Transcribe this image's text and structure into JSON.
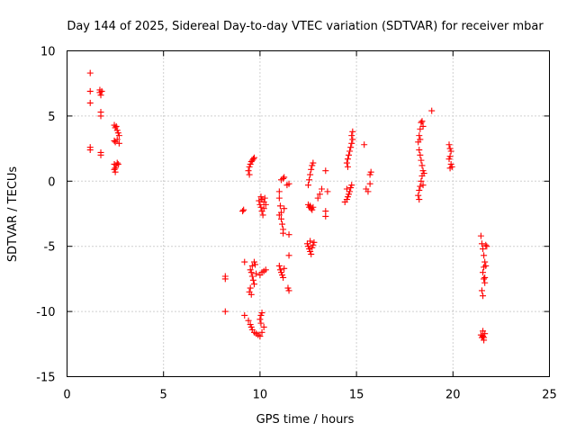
{
  "chart_data": {
    "type": "scatter",
    "title": "Day 144 of 2025, Sidereal Day-to-day VTEC variation (SDTVAR) for receiver mbar",
    "xlabel": "GPS time / hours",
    "ylabel": "SDTVAR / TECUs",
    "xlim": [
      0,
      25
    ],
    "ylim": [
      -15,
      10
    ],
    "xticks": [
      0,
      5,
      10,
      15,
      20,
      25
    ],
    "yticks": [
      -15,
      -10,
      -5,
      0,
      5,
      10
    ],
    "grid": true,
    "marker": "+",
    "marker_color": "#ff0000",
    "series": [
      {
        "name": "SDTVAR",
        "points": [
          [
            1.2,
            8.3
          ],
          [
            1.2,
            6.9
          ],
          [
            1.2,
            6.0
          ],
          [
            1.2,
            2.6
          ],
          [
            1.2,
            2.4
          ],
          [
            1.7,
            7.0
          ],
          [
            1.7,
            6.8
          ],
          [
            1.75,
            6.6
          ],
          [
            1.8,
            6.9
          ],
          [
            1.75,
            5.3
          ],
          [
            1.75,
            5.0
          ],
          [
            1.75,
            2.2
          ],
          [
            1.75,
            2.0
          ],
          [
            2.45,
            4.3
          ],
          [
            2.5,
            4.1
          ],
          [
            2.55,
            4.2
          ],
          [
            2.6,
            3.9
          ],
          [
            2.65,
            3.7
          ],
          [
            2.7,
            3.5
          ],
          [
            2.6,
            3.2
          ],
          [
            2.5,
            3.0
          ],
          [
            2.45,
            3.1
          ],
          [
            2.7,
            2.9
          ],
          [
            2.45,
            1.3
          ],
          [
            2.5,
            1.0
          ],
          [
            2.55,
            1.2
          ],
          [
            2.6,
            1.4
          ],
          [
            2.65,
            1.3
          ],
          [
            2.5,
            0.7
          ],
          [
            2.45,
            0.9
          ],
          [
            8.2,
            -7.3
          ],
          [
            8.2,
            -7.5
          ],
          [
            8.2,
            -10.0
          ],
          [
            9.1,
            -2.3
          ],
          [
            9.15,
            -2.2
          ],
          [
            9.2,
            -6.2
          ],
          [
            9.2,
            -10.3
          ],
          [
            9.4,
            0.8
          ],
          [
            9.45,
            1.1
          ],
          [
            9.5,
            1.3
          ],
          [
            9.55,
            1.5
          ],
          [
            9.6,
            1.6
          ],
          [
            9.65,
            1.7
          ],
          [
            9.7,
            1.8
          ],
          [
            9.45,
            0.5
          ],
          [
            9.5,
            -6.8
          ],
          [
            9.55,
            -7.0
          ],
          [
            9.6,
            -7.3
          ],
          [
            9.65,
            -7.6
          ],
          [
            9.7,
            -7.9
          ],
          [
            9.5,
            -8.2
          ],
          [
            9.45,
            -8.5
          ],
          [
            9.55,
            -8.7
          ],
          [
            9.6,
            -6.5
          ],
          [
            9.7,
            -6.2
          ],
          [
            9.75,
            -6.4
          ],
          [
            9.8,
            -7.1
          ],
          [
            9.4,
            -10.7
          ],
          [
            9.5,
            -11.0
          ],
          [
            9.55,
            -11.2
          ],
          [
            9.6,
            -11.4
          ],
          [
            9.7,
            -11.6
          ],
          [
            9.8,
            -11.7
          ],
          [
            9.9,
            -11.8
          ],
          [
            10.0,
            -11.9
          ],
          [
            10.1,
            -11.6
          ],
          [
            10.2,
            -11.2
          ],
          [
            10.0,
            -10.6
          ],
          [
            10.05,
            -10.3
          ],
          [
            10.1,
            -10.1
          ],
          [
            10.05,
            -10.9
          ],
          [
            10.0,
            -7.2
          ],
          [
            10.1,
            -7.0
          ],
          [
            10.2,
            -6.9
          ],
          [
            10.3,
            -6.8
          ],
          [
            9.95,
            -1.5
          ],
          [
            10.0,
            -1.8
          ],
          [
            10.05,
            -2.0
          ],
          [
            10.1,
            -2.3
          ],
          [
            10.15,
            -2.6
          ],
          [
            10.05,
            -1.2
          ],
          [
            10.1,
            -1.4
          ],
          [
            10.2,
            -1.6
          ],
          [
            10.2,
            -2.1
          ],
          [
            10.3,
            -1.8
          ],
          [
            10.25,
            -1.3
          ],
          [
            11.0,
            -0.8
          ],
          [
            11.0,
            -1.3
          ],
          [
            11.05,
            -1.9
          ],
          [
            11.1,
            -2.4
          ],
          [
            11.1,
            -2.9
          ],
          [
            11.15,
            -3.3
          ],
          [
            11.2,
            -3.7
          ],
          [
            11.2,
            -4.0
          ],
          [
            11.25,
            -2.1
          ],
          [
            11.0,
            -2.6
          ],
          [
            11.0,
            -6.5
          ],
          [
            11.05,
            -6.8
          ],
          [
            11.1,
            -7.0
          ],
          [
            11.15,
            -7.2
          ],
          [
            11.2,
            -7.4
          ],
          [
            11.25,
            -6.7
          ],
          [
            11.2,
            0.2
          ],
          [
            11.25,
            0.3
          ],
          [
            11.1,
            0.1
          ],
          [
            11.4,
            -0.3
          ],
          [
            11.5,
            -0.2
          ],
          [
            11.5,
            -4.1
          ],
          [
            11.5,
            -5.7
          ],
          [
            11.45,
            -8.2
          ],
          [
            11.5,
            -8.4
          ],
          [
            12.5,
            -1.8
          ],
          [
            12.55,
            -2.0
          ],
          [
            12.6,
            -1.9
          ],
          [
            12.65,
            -2.1
          ],
          [
            12.7,
            -2.2
          ],
          [
            12.75,
            -2.0
          ],
          [
            12.45,
            -4.8
          ],
          [
            12.5,
            -5.0
          ],
          [
            12.55,
            -5.2
          ],
          [
            12.6,
            -5.4
          ],
          [
            12.65,
            -5.6
          ],
          [
            12.7,
            -5.1
          ],
          [
            12.75,
            -4.9
          ],
          [
            12.8,
            -4.7
          ],
          [
            12.6,
            -4.6
          ],
          [
            12.5,
            -0.3
          ],
          [
            12.55,
            0.1
          ],
          [
            12.6,
            0.5
          ],
          [
            12.65,
            0.9
          ],
          [
            12.7,
            1.2
          ],
          [
            12.75,
            1.4
          ],
          [
            13.0,
            -1.3
          ],
          [
            13.1,
            -1.0
          ],
          [
            13.2,
            -0.6
          ],
          [
            13.4,
            -2.3
          ],
          [
            13.4,
            -2.7
          ],
          [
            13.4,
            0.8
          ],
          [
            13.5,
            -0.8
          ],
          [
            14.4,
            -1.6
          ],
          [
            14.5,
            -1.4
          ],
          [
            14.55,
            -1.2
          ],
          [
            14.6,
            -1.0
          ],
          [
            14.65,
            -0.8
          ],
          [
            14.7,
            -0.5
          ],
          [
            14.75,
            -0.3
          ],
          [
            14.5,
            -0.6
          ],
          [
            14.5,
            1.4
          ],
          [
            14.55,
            1.7
          ],
          [
            14.6,
            2.0
          ],
          [
            14.65,
            2.3
          ],
          [
            14.7,
            2.6
          ],
          [
            14.75,
            2.9
          ],
          [
            14.8,
            3.2
          ],
          [
            14.75,
            3.5
          ],
          [
            14.8,
            3.8
          ],
          [
            14.55,
            1.1
          ],
          [
            15.4,
            2.8
          ],
          [
            15.5,
            -0.6
          ],
          [
            15.6,
            -0.8
          ],
          [
            15.7,
            -0.2
          ],
          [
            15.7,
            0.5
          ],
          [
            15.75,
            0.7
          ],
          [
            18.2,
            3.0
          ],
          [
            18.25,
            3.5
          ],
          [
            18.3,
            4.0
          ],
          [
            18.35,
            4.5
          ],
          [
            18.4,
            4.6
          ],
          [
            18.45,
            4.2
          ],
          [
            18.3,
            3.2
          ],
          [
            18.25,
            2.4
          ],
          [
            18.3,
            2.0
          ],
          [
            18.35,
            1.6
          ],
          [
            18.4,
            1.2
          ],
          [
            18.45,
            0.8
          ],
          [
            18.4,
            0.4
          ],
          [
            18.35,
            0.0
          ],
          [
            18.3,
            -0.4
          ],
          [
            18.25,
            -0.7
          ],
          [
            18.2,
            -1.1
          ],
          [
            18.25,
            -1.4
          ],
          [
            18.45,
            -0.3
          ],
          [
            18.5,
            0.6
          ],
          [
            18.9,
            5.4
          ],
          [
            19.8,
            2.8
          ],
          [
            19.85,
            2.5
          ],
          [
            19.9,
            2.3
          ],
          [
            19.85,
            1.9
          ],
          [
            19.8,
            1.7
          ],
          [
            19.9,
            1.3
          ],
          [
            19.95,
            1.1
          ],
          [
            19.85,
            1.0
          ],
          [
            21.45,
            -4.2
          ],
          [
            21.5,
            -4.8
          ],
          [
            21.55,
            -5.2
          ],
          [
            21.6,
            -5.7
          ],
          [
            21.65,
            -6.2
          ],
          [
            21.6,
            -6.6
          ],
          [
            21.55,
            -7.0
          ],
          [
            21.6,
            -7.5
          ],
          [
            21.65,
            -7.8
          ],
          [
            21.7,
            -6.5
          ],
          [
            21.75,
            -5.0
          ],
          [
            21.5,
            -8.4
          ],
          [
            21.55,
            -8.8
          ],
          [
            21.65,
            -7.4
          ],
          [
            21.7,
            -4.9
          ],
          [
            21.45,
            -11.8
          ],
          [
            21.5,
            -12.0
          ],
          [
            21.55,
            -11.9
          ],
          [
            21.6,
            -12.2
          ],
          [
            21.65,
            -11.7
          ],
          [
            21.55,
            -11.5
          ],
          [
            21.6,
            -12.0
          ]
        ]
      }
    ]
  }
}
